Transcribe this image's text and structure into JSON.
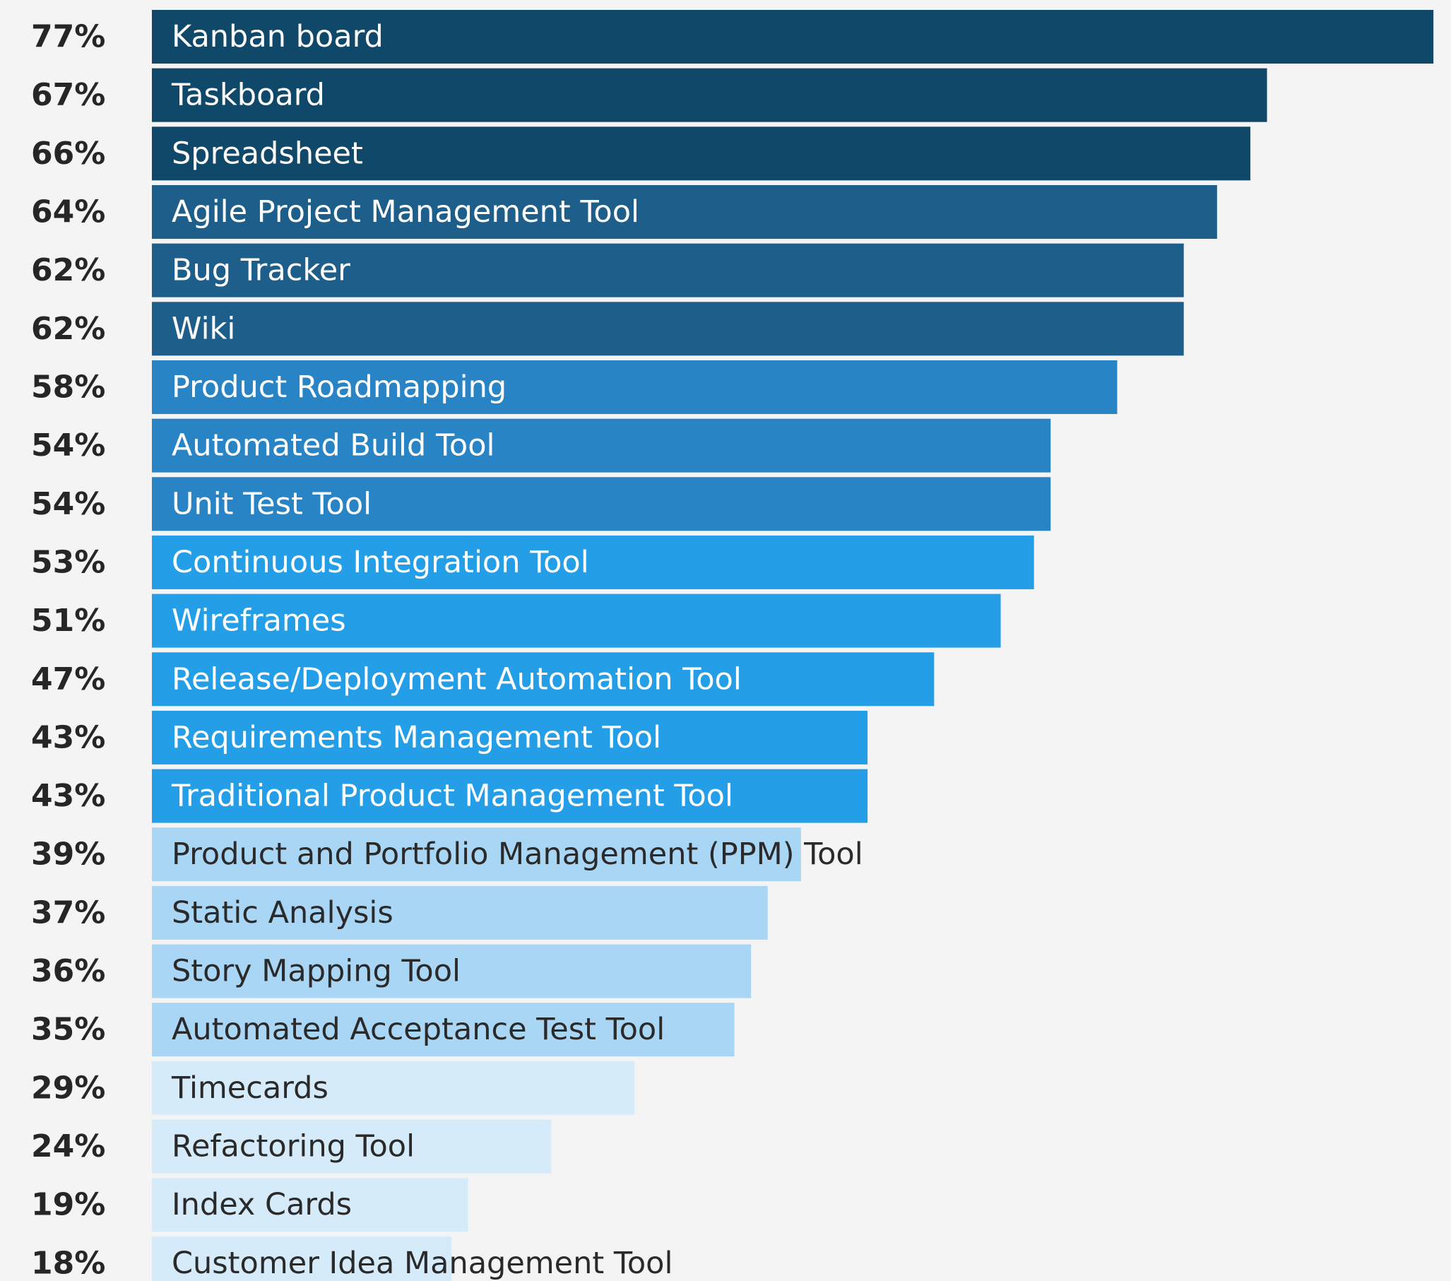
{
  "chart_data": {
    "type": "bar",
    "orientation": "horizontal",
    "categories": [
      "Kanban board",
      "Taskboard",
      "Spreadsheet",
      "Agile Project Management Tool",
      "Bug Tracker",
      "Wiki",
      "Product Roadmapping",
      "Automated Build Tool",
      "Unit Test Tool",
      "Continuous Integration Tool",
      "Wireframes",
      "Release/Deployment Automation Tool",
      "Requirements Management Tool",
      "Traditional Product Management Tool",
      "Product and Portfolio Management (PPM) Tool",
      "Static Analysis",
      "Story Mapping Tool",
      "Automated Acceptance Test Tool",
      "Timecards",
      "Refactoring Tool",
      "Index Cards",
      "Customer Idea Management Tool"
    ],
    "values": [
      77,
      67,
      66,
      64,
      62,
      62,
      58,
      54,
      54,
      53,
      51,
      47,
      43,
      43,
      39,
      37,
      36,
      35,
      29,
      24,
      19,
      18
    ],
    "value_labels": [
      "77%",
      "67%",
      "66%",
      "64%",
      "62%",
      "62%",
      "58%",
      "54%",
      "54%",
      "53%",
      "51%",
      "47%",
      "43%",
      "43%",
      "39%",
      "37%",
      "36%",
      "35%",
      "29%",
      "24%",
      "19%",
      "18%"
    ],
    "colors": [
      "#10486a",
      "#10486a",
      "#10486a",
      "#1d5f8a",
      "#1d5f8a",
      "#1d5f8a",
      "#2884c4",
      "#2884c4",
      "#2884c4",
      "#259ee8",
      "#259ee8",
      "#259ee8",
      "#259ee8",
      "#259ee8",
      "#a9d6f5",
      "#a9d6f5",
      "#a9d6f5",
      "#a9d6f5",
      "#d5ebfa",
      "#d5ebfa",
      "#d5ebfa",
      "#d5ebfa"
    ]
  }
}
